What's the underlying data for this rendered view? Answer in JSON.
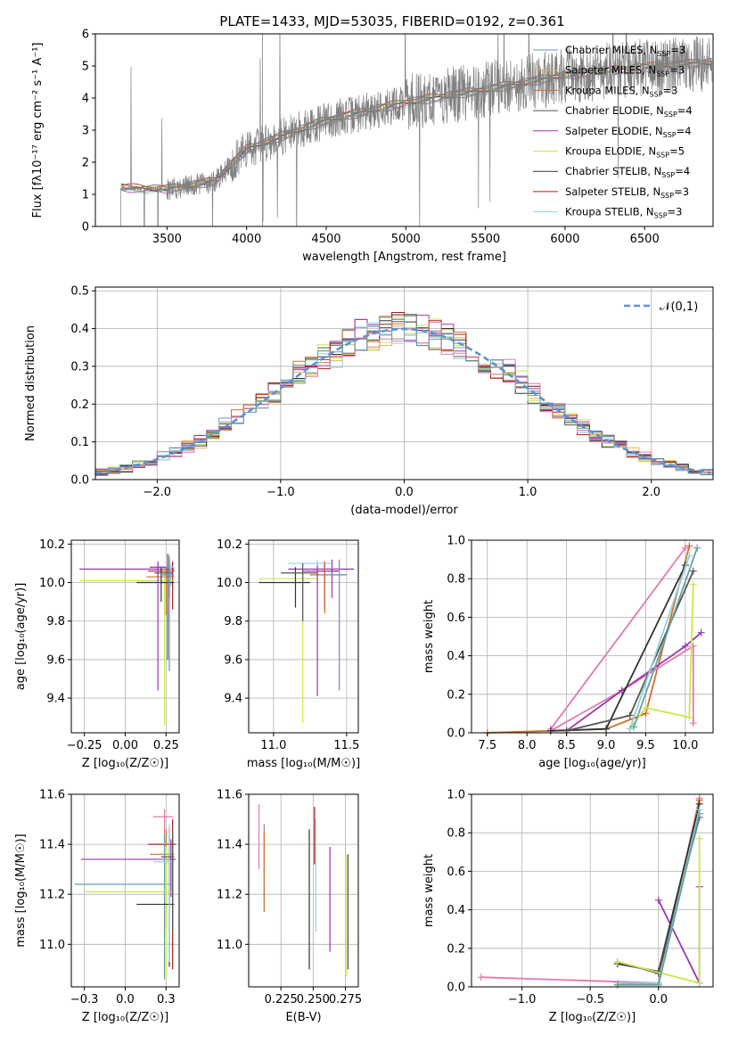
{
  "figure": {
    "title": "PLATE=1433, MJD=53035, FIBERID=0192, z=0.361"
  },
  "chart_data": [
    {
      "type": "line",
      "name": "spectrum",
      "xlabel": "wavelength [Angstrom, rest frame]",
      "ylabel": "Flux [fλ10⁻¹⁷ erg cm⁻² s⁻¹ A⁻¹]",
      "xlim": [
        3050,
        6930
      ],
      "ylim": [
        0,
        6
      ],
      "xticks": [
        3500,
        4000,
        4500,
        5000,
        5500,
        6000,
        6500
      ],
      "yticks": [
        0,
        1,
        2,
        3,
        4,
        5,
        6
      ],
      "grid": false,
      "legend_position": "right",
      "data_trend": {
        "x": [
          3200,
          3500,
          3800,
          4000,
          4500,
          5000,
          5500,
          6000,
          6500,
          6900
        ],
        "y": [
          1.2,
          1.15,
          1.4,
          2.4,
          3.3,
          3.85,
          4.25,
          4.7,
          4.95,
          5.1
        ]
      },
      "series": [
        {
          "name": "Chabrier MILES, N_SSP=3",
          "color": "#6a8ed0",
          "offset": 0.0
        },
        {
          "name": "Salpeter MILES, N_SSP=3",
          "color": "#d8b64c",
          "offset": 0.05
        },
        {
          "name": "Kroupa MILES, N_SSP=3",
          "color": "#d07028",
          "offset": -0.05
        },
        {
          "name": "Chabrier ELODIE, N_SSP=4",
          "color": "#555555",
          "offset": 0.08
        },
        {
          "name": "Salpeter ELODIE, N_SSP=4",
          "color": "#9a35b0",
          "offset": -0.08
        },
        {
          "name": "Kroupa ELODIE, N_SSP=5",
          "color": "#c8e84a",
          "offset": 0.02
        },
        {
          "name": "Chabrier STELIB, N_SSP=4",
          "color": "#333333",
          "offset": -0.02
        },
        {
          "name": "Salpeter STELIB, N_SSP=3",
          "color": "#b01818",
          "offset": 0.1
        },
        {
          "name": "Kroupa STELIB, N_SSP=3",
          "color": "#8fd3e0",
          "offset": -0.1
        }
      ]
    },
    {
      "type": "step",
      "name": "residuals",
      "xlabel": "(data-model)/error",
      "ylabel": "Normed distribution",
      "xlim": [
        -2.5,
        2.5
      ],
      "ylim": [
        0,
        0.51
      ],
      "xticks": [
        -2,
        -1,
        0,
        1,
        2
      ],
      "yticks": [
        0.0,
        0.1,
        0.2,
        0.3,
        0.4,
        0.5
      ],
      "grid": true,
      "legend": [
        {
          "name": "𝒩(0,1)",
          "style": "dashed",
          "color": "#6090d8"
        }
      ],
      "legend_position": "top-right",
      "reference_curve": "normal(0,1)"
    },
    {
      "type": "errorbar",
      "name": "age-vs-Z",
      "xlabel": "Z [log₁₀(Z/Z☉)]",
      "ylabel": "age  [log₁₀(age/yr)]",
      "xlim": [
        -0.33,
        0.33
      ],
      "ylim": [
        9.22,
        10.22
      ],
      "xticks": [
        -0.25,
        0.0,
        0.25
      ],
      "yticks": [
        9.4,
        9.6,
        9.8,
        10.0,
        10.2
      ],
      "grid": true,
      "points": [
        {
          "x": 0.27,
          "y": 10.07,
          "xerr": [
            0.55,
            0.03
          ],
          "yerr": [
            0.15,
            0.05
          ],
          "color": "#9a35b0"
        },
        {
          "x": 0.29,
          "y": 10.06,
          "xerr": [
            0.15,
            0.01
          ],
          "yerr": [
            0.2,
            0.05
          ],
          "color": "#b01818"
        },
        {
          "x": 0.28,
          "y": 10.08,
          "xerr": [
            0.1,
            0.02
          ],
          "yerr": [
            0.1,
            0.02
          ],
          "color": "#8fd3e0"
        },
        {
          "x": 0.25,
          "y": 10.03,
          "xerr": [
            0.12,
            0.05
          ],
          "yerr": [
            0.2,
            0.05
          ],
          "color": "#d07028"
        },
        {
          "x": 0.24,
          "y": 10.01,
          "xerr": [
            0.52,
            0.05
          ],
          "yerr": [
            0.75,
            0.05
          ],
          "color": "#c8e84a"
        },
        {
          "x": 0.22,
          "y": 10.0,
          "xerr": [
            0.15,
            0.08
          ],
          "yerr": [
            0.1,
            0.08
          ],
          "color": "#333333"
        },
        {
          "x": 0.2,
          "y": 10.08,
          "xerr": [
            0.05,
            0.05
          ],
          "yerr": [
            0.64,
            0.03
          ],
          "color": "#9a35b0"
        },
        {
          "x": 0.26,
          "y": 10.05,
          "xerr": [
            0.08,
            0.03
          ],
          "yerr": [
            0.45,
            0.1
          ],
          "color": "#555555"
        },
        {
          "x": 0.27,
          "y": 10.04,
          "xerr": [
            0.05,
            0.03
          ],
          "yerr": [
            0.5,
            0.1
          ],
          "color": "#6a8ed0"
        }
      ]
    },
    {
      "type": "errorbar",
      "name": "age-vs-mass",
      "xlabel": "mass [log₁₀(M/M☉)]",
      "ylabel": "",
      "xlim": [
        10.83,
        11.58
      ],
      "ylim": [
        9.22,
        10.22
      ],
      "xticks": [
        11.0,
        11.5
      ],
      "yticks": [
        9.4,
        9.6,
        9.8,
        10.0,
        10.2
      ],
      "grid": true,
      "points": [
        {
          "x": 11.4,
          "y": 10.07,
          "xerr": [
            0.3,
            0.15
          ],
          "yerr": [
            0.15,
            0.05
          ],
          "color": "#9a35b0"
        },
        {
          "x": 11.35,
          "y": 10.06,
          "xerr": [
            0.15,
            0.1
          ],
          "yerr": [
            0.2,
            0.05
          ],
          "color": "#b01818"
        },
        {
          "x": 11.3,
          "y": 10.1,
          "xerr": [
            0.2,
            0.1
          ],
          "yerr": [
            0.1,
            0.02
          ],
          "color": "#8fd3e0"
        },
        {
          "x": 11.35,
          "y": 10.04,
          "xerr": [
            0.1,
            0.15
          ],
          "yerr": [
            0.2,
            0.05
          ],
          "color": "#d07028"
        },
        {
          "x": 11.2,
          "y": 10.02,
          "xerr": [
            0.3,
            0.1
          ],
          "yerr": [
            0.75,
            0.05
          ],
          "color": "#c8e84a"
        },
        {
          "x": 11.15,
          "y": 10.0,
          "xerr": [
            0.25,
            0.1
          ],
          "yerr": [
            0.13,
            0.08
          ],
          "color": "#333333"
        },
        {
          "x": 11.3,
          "y": 10.06,
          "xerr": [
            0.1,
            0.1
          ],
          "yerr": [
            0.65,
            0.03
          ],
          "color": "#9a35b0"
        },
        {
          "x": 11.2,
          "y": 10.05,
          "xerr": [
            0.15,
            0.1
          ],
          "yerr": [
            0.25,
            0.05
          ],
          "color": "#555555"
        },
        {
          "x": 11.45,
          "y": 10.04,
          "xerr": [
            0.1,
            0.05
          ],
          "yerr": [
            0.6,
            0.08
          ],
          "color": "#6a8ed0"
        }
      ]
    },
    {
      "type": "line",
      "name": "mass-weight-vs-age",
      "xlabel": "age  [log₁₀(age/yr)]",
      "ylabel": "mass weight",
      "xlim": [
        7.3,
        10.35
      ],
      "ylim": [
        0,
        1
      ],
      "xticks": [
        7.5,
        8.0,
        8.5,
        9.0,
        9.5,
        10.0
      ],
      "yticks": [
        0.0,
        0.2,
        0.4,
        0.6,
        0.8,
        1.0
      ],
      "grid": true,
      "series": [
        {
          "x": [
            7.5,
            8.3,
            9.0,
            9.5,
            10.05
          ],
          "y": [
            0.0,
            0.01,
            0.02,
            0.1,
            0.97
          ],
          "color": "#d07028"
        },
        {
          "x": [
            8.3,
            10.0
          ],
          "y": [
            0.02,
            0.96
          ],
          "color": "#e07ab0"
        },
        {
          "x": [
            8.3,
            9.2,
            10.1,
            10.1
          ],
          "y": [
            0.01,
            0.22,
            0.45,
            0.05
          ],
          "color": "#e07ab0"
        },
        {
          "x": [
            8.5,
            9.2,
            10.0,
            10.2
          ],
          "y": [
            0.01,
            0.22,
            0.45,
            0.52
          ],
          "color": "#9a35b0"
        },
        {
          "x": [
            8.3,
            9.0,
            10.0
          ],
          "y": [
            0.01,
            0.02,
            0.87
          ],
          "color": "#333333"
        },
        {
          "x": [
            8.5,
            9.3,
            10.1
          ],
          "y": [
            0.01,
            0.09,
            0.84
          ],
          "color": "#555555"
        },
        {
          "x": [
            9.3,
            9.5,
            10.05,
            10.1
          ],
          "y": [
            0.02,
            0.13,
            0.08,
            0.77
          ],
          "color": "#c8e84a"
        },
        {
          "x": [
            9.3,
            10.05
          ],
          "y": [
            0.02,
            0.92
          ],
          "color": "#8fd3e0"
        },
        {
          "x": [
            9.35,
            10.15
          ],
          "y": [
            0.03,
            0.96
          ],
          "color": "#6aa0a0"
        }
      ]
    },
    {
      "type": "errorbar",
      "name": "mass-vs-Z",
      "xlabel": "Z [log₁₀(Z/Z☉)]",
      "ylabel": "mass [log₁₀(M/M☉)]",
      "xlim": [
        -0.33,
        0.33
      ],
      "ylim": [
        10.83,
        11.6
      ],
      "xticks": [
        -0.25,
        0.0,
        0.25
      ],
      "yticks": [
        11.0,
        11.2,
        11.4,
        11.6
      ],
      "grid": true,
      "points": [
        {
          "x": 0.24,
          "y": 11.51,
          "xerr": [
            0.07,
            0.05
          ],
          "yerr": [
            0.1,
            0.03
          ],
          "color": "#e07ab0"
        },
        {
          "x": 0.29,
          "y": 11.4,
          "xerr": [
            0.15,
            0.02
          ],
          "yerr": [
            0.5,
            0.1
          ],
          "color": "#b01818"
        },
        {
          "x": 0.28,
          "y": 11.34,
          "xerr": [
            0.55,
            0.03
          ],
          "yerr": [
            0.15,
            0.08
          ],
          "color": "#9a35b0"
        },
        {
          "x": 0.25,
          "y": 11.36,
          "xerr": [
            0.1,
            0.05
          ],
          "yerr": [
            0.3,
            0.1
          ],
          "color": "#d07028"
        },
        {
          "x": 0.24,
          "y": 11.24,
          "xerr": [
            0.55,
            0.05
          ],
          "yerr": [
            0.38,
            0.2
          ],
          "color": "#6aa0a0"
        },
        {
          "x": 0.25,
          "y": 11.21,
          "xerr": [
            0.5,
            0.05
          ],
          "yerr": [
            0.35,
            0.18
          ],
          "color": "#c8e84a"
        },
        {
          "x": 0.27,
          "y": 11.16,
          "xerr": [
            0.2,
            0.03
          ],
          "yerr": [
            0.25,
            0.3
          ],
          "color": "#333333"
        },
        {
          "x": 0.27,
          "y": 11.33,
          "xerr": [
            0.1,
            0.03
          ],
          "yerr": [
            0.4,
            0.15
          ],
          "color": "#8fd3e0"
        },
        {
          "x": 0.29,
          "y": 11.35,
          "xerr": [
            0.07,
            0.01
          ],
          "yerr": [
            0.3,
            0.1
          ],
          "color": "#555555"
        }
      ]
    },
    {
      "type": "errorbar",
      "name": "mass-vs-EBV",
      "xlabel": "E(B-V)",
      "ylabel": "",
      "xlim": [
        0.2,
        0.285
      ],
      "ylim": [
        10.83,
        11.6
      ],
      "xticks": [
        0.225,
        0.25,
        0.275
      ],
      "yticks": [
        11.0,
        11.2,
        11.4,
        11.6
      ],
      "grid": true,
      "points": [
        {
          "x": 0.208,
          "y": 11.43,
          "yerr": [
            0.13,
            0.13
          ],
          "color": "#e07ab0"
        },
        {
          "x": 0.212,
          "y": 11.36,
          "yerr": [
            0.23,
            0.12
          ],
          "color": "#6a8ed0"
        },
        {
          "x": 0.212,
          "y": 11.3,
          "yerr": [
            0.17,
            0.15
          ],
          "color": "#d07028"
        },
        {
          "x": 0.247,
          "y": 11.17,
          "yerr": [
            0.27,
            0.29
          ],
          "color": "#333333"
        },
        {
          "x": 0.251,
          "y": 11.42,
          "yerr": [
            0.1,
            0.13
          ],
          "color": "#b01818"
        },
        {
          "x": 0.252,
          "y": 11.3,
          "yerr": [
            0.25,
            0.2
          ],
          "color": "#8fd3e0"
        },
        {
          "x": 0.263,
          "y": 11.18,
          "yerr": [
            0.21,
            0.21
          ],
          "color": "#9a35b0"
        },
        {
          "x": 0.276,
          "y": 11.11,
          "yerr": [
            0.24,
            0.25
          ],
          "color": "#c8e84a"
        },
        {
          "x": 0.277,
          "y": 11.2,
          "yerr": [
            0.3,
            0.16
          ],
          "color": "#555555"
        }
      ]
    },
    {
      "type": "line",
      "name": "mass-weight-vs-Z",
      "xlabel": "Z [log₁₀(Z/Z☉)]",
      "ylabel": "mass weight",
      "xlim": [
        -1.37,
        0.4
      ],
      "ylim": [
        0,
        1
      ],
      "xticks": [
        -1.0,
        -0.5,
        0.0
      ],
      "yticks": [
        0.0,
        0.2,
        0.4,
        0.6,
        0.8,
        1.0
      ],
      "grid": true,
      "series": [
        {
          "x": [
            -1.3,
            0.0,
            0.3
          ],
          "y": [
            0.05,
            0.02,
            0.98
          ],
          "color": "#e07ab0"
        },
        {
          "x": [
            -0.3,
            0.0,
            0.3
          ],
          "y": [
            0.01,
            0.02,
            0.97
          ],
          "color": "#d07028"
        },
        {
          "x": [
            0.0,
            0.3,
            0.3
          ],
          "y": [
            0.45,
            0.02,
            0.52
          ],
          "color": "#9a35b0"
        },
        {
          "x": [
            -0.3,
            0.0,
            0.3
          ],
          "y": [
            0.12,
            0.08,
            0.95
          ],
          "color": "#333333"
        },
        {
          "x": [
            -0.3,
            0.0,
            0.3
          ],
          "y": [
            0.13,
            0.07,
            0.88
          ],
          "color": "#555555"
        },
        {
          "x": [
            -0.3,
            0.3,
            0.3
          ],
          "y": [
            0.13,
            0.02,
            0.77
          ],
          "color": "#c8e84a"
        },
        {
          "x": [
            -0.3,
            0.0,
            0.3
          ],
          "y": [
            0.02,
            0.02,
            0.92
          ],
          "color": "#8fd3e0"
        },
        {
          "x": [
            -0.3,
            0.0,
            0.3
          ],
          "y": [
            0.01,
            0.01,
            0.9
          ],
          "color": "#6aa0a0"
        }
      ]
    }
  ]
}
